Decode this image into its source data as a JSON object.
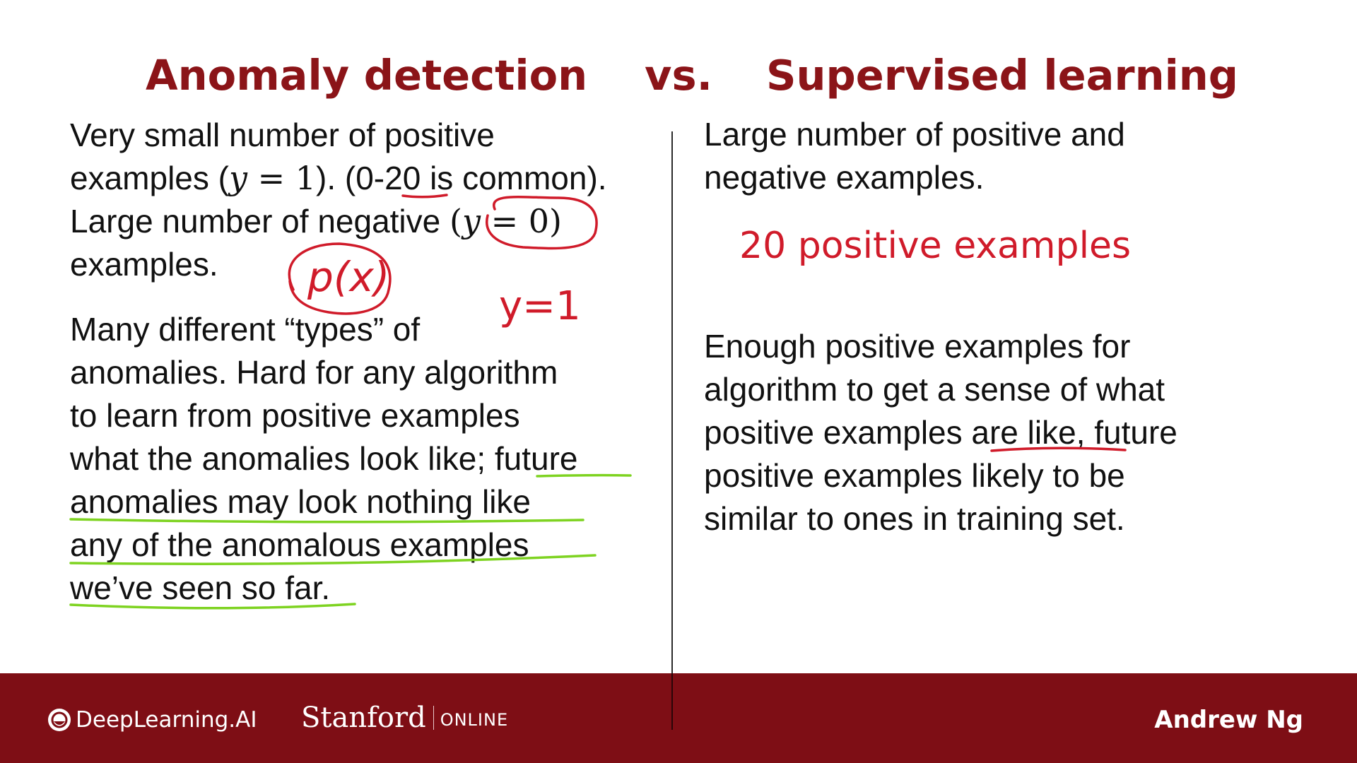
{
  "title": {
    "left": "Anomaly detection",
    "vs": "vs.",
    "right": "Supervised learning"
  },
  "left_column": {
    "p1": {
      "line1": "Very small number of positive",
      "line2_prefix": "examples (",
      "line2_math_var": "y",
      "line2_math_rest": " = 1",
      "line2_suffix": "). (0-20 is common).",
      "line3_prefix": "Large number of negative ",
      "line3_math_open": "(",
      "line3_math_var": "y",
      "line3_math_rest": " = 0)",
      "line4": "examples."
    },
    "p2": {
      "lines": [
        "Many different “types” of",
        "anomalies. Hard for any algorithm",
        "to learn from positive examples",
        "what the anomalies look like; future",
        "anomalies may look nothing like",
        "any of the anomalous examples",
        "we’ve seen so far."
      ]
    }
  },
  "right_column": {
    "p1": {
      "lines": [
        "Large number of positive and",
        "negative examples."
      ]
    },
    "note": "20 positive examples",
    "p2": {
      "lines": [
        "Enough positive examples for",
        "algorithm to get a sense of what",
        "positive examples are like,  future",
        "positive examples likely to be",
        "similar to ones in training set."
      ]
    }
  },
  "handwriting": {
    "px": "p(x)",
    "y1": "y=1"
  },
  "footer": {
    "brand": "DeepLearning.AI",
    "stanford": "Stanford",
    "online": "ONLINE",
    "presenter": "Andrew Ng"
  },
  "colors": {
    "title": "#8b1418",
    "footer_bg": "#7e0e15",
    "red_ink": "#d01b2a",
    "green_ink": "#7ed321"
  }
}
